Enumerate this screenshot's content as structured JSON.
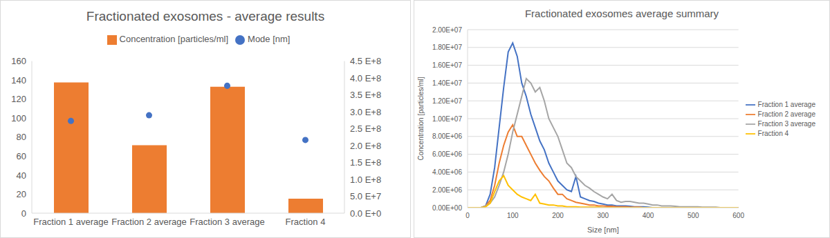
{
  "chart_data": [
    {
      "type": "bar",
      "title": "Fractionated exosomes - average results",
      "categories": [
        "Fraction 1 average",
        "Fraction 2 average",
        "Fraction 3 average",
        "Fraction 4"
      ],
      "series": [
        {
          "name": "Concentration [particles/ml]",
          "type": "bar",
          "color": "#ed7d31",
          "axis": "y2",
          "values": [
            387000000.0,
            201000000.0,
            374000000.0,
            43000000.0
          ]
        },
        {
          "name": "Mode [nm]",
          "type": "scatter",
          "color": "#4472c4",
          "marker": "circle",
          "values": [
            97,
            103,
            134,
            77
          ]
        }
      ],
      "ylim": [
        0,
        160
      ],
      "yticks": [
        0,
        20,
        40,
        60,
        80,
        100,
        120,
        140,
        160
      ],
      "y2lim": [
        0,
        450000000.0
      ],
      "y2ticks": [
        {
          "value": 0,
          "label": "0.0 E+0"
        },
        {
          "value": 50000000.0,
          "label": "5.0 E+7"
        },
        {
          "value": 100000000.0,
          "label": "1.0 E+8"
        },
        {
          "value": 150000000.0,
          "label": "1.5 E+8"
        },
        {
          "value": 200000000.0,
          "label": "2.0 E+8"
        },
        {
          "value": 250000000.0,
          "label": "2.5 E+8"
        },
        {
          "value": 300000000.0,
          "label": "3.0 E+8"
        },
        {
          "value": 350000000.0,
          "label": "3.5 E+8"
        },
        {
          "value": 400000000.0,
          "label": "4.0 E+8"
        },
        {
          "value": 450000000.0,
          "label": "4.5 E+8"
        }
      ],
      "legend": "top",
      "grid": false
    },
    {
      "type": "line",
      "title": "Fractionated exosomes average summary",
      "xlabel": "Size [nm]",
      "ylabel": "Concentration [particles/ml]",
      "x": [
        0,
        10,
        20,
        30,
        40,
        50,
        60,
        70,
        80,
        90,
        100,
        110,
        120,
        130,
        140,
        150,
        160,
        170,
        180,
        190,
        200,
        210,
        220,
        230,
        240,
        250,
        260,
        270,
        280,
        290,
        300,
        310,
        320,
        330,
        340,
        350,
        360,
        370,
        380,
        390,
        400,
        410,
        420,
        430,
        440,
        450,
        460,
        470,
        480,
        490,
        500,
        510,
        520,
        530,
        540,
        550,
        560,
        570,
        580,
        590,
        600
      ],
      "series": [
        {
          "name": "Fraction 1 average",
          "color": "#4472c4",
          "values": [
            0,
            0,
            0,
            0,
            200000.0,
            1500000.0,
            4500000.0,
            9000000.0,
            13500000.0,
            17500000.0,
            18500000.0,
            17000000.0,
            14000000.0,
            12500000.0,
            10500000.0,
            9000000.0,
            7500000.0,
            6500000.0,
            5000000.0,
            4000000.0,
            3000000.0,
            2500000.0,
            2000000.0,
            1800000.0,
            3500000.0,
            1200000.0,
            1000000.0,
            800000.0,
            700000.0,
            500000.0,
            400000.0,
            300000.0,
            300000.0,
            200000.0,
            200000.0,
            200000.0,
            150000.0,
            100000.0,
            100000.0,
            100000.0,
            50000.0,
            0,
            0,
            0,
            0,
            0,
            0,
            0,
            0,
            0,
            0,
            0,
            0,
            0,
            0,
            0,
            0,
            0,
            0,
            0,
            0
          ]
        },
        {
          "name": "Fraction 2 average",
          "color": "#ed7d31",
          "values": [
            0,
            0,
            0,
            0,
            200000.0,
            800000.0,
            2500000.0,
            5000000.0,
            7000000.0,
            8500000.0,
            9300000.0,
            8000000.0,
            8000000.0,
            7000000.0,
            6000000.0,
            5000000.0,
            4200000.0,
            3500000.0,
            3000000.0,
            2200000.0,
            1500000.0,
            1500000.0,
            1000000.0,
            800000.0,
            600000.0,
            500000.0,
            400000.0,
            300000.0,
            300000.0,
            200000.0,
            200000.0,
            150000.0,
            150000.0,
            100000.0,
            100000.0,
            100000.0,
            50000.0,
            50000.0,
            50000.0,
            0,
            0,
            0,
            0,
            0,
            0,
            0,
            0,
            0,
            0,
            0,
            0,
            0,
            0,
            0,
            0,
            0,
            0,
            0,
            0,
            0,
            0
          ]
        },
        {
          "name": "Fraction 3 average",
          "color": "#a5a5a5",
          "values": [
            0,
            0,
            0,
            0,
            200000.0,
            500000.0,
            1200000.0,
            2500000.0,
            4000000.0,
            6000000.0,
            8500000.0,
            10500000.0,
            12500000.0,
            14500000.0,
            14000000.0,
            13000000.0,
            13500000.0,
            12000000.0,
            10000000.0,
            9000000.0,
            8000000.0,
            6500000.0,
            5000000.0,
            4500000.0,
            3500000.0,
            3000000.0,
            2500000.0,
            2200000.0,
            1800000.0,
            1500000.0,
            1200000.0,
            1000000.0,
            1500000.0,
            800000.0,
            600000.0,
            700000.0,
            700000.0,
            600000.0,
            500000.0,
            500000.0,
            400000.0,
            300000.0,
            300000.0,
            200000.0,
            200000.0,
            200000.0,
            150000.0,
            100000.0,
            100000.0,
            100000.0,
            100000.0,
            100000.0,
            50000.0,
            50000.0,
            50000.0,
            50000.0,
            0,
            0,
            0,
            0,
            0
          ]
        },
        {
          "name": "Fraction 4",
          "color": "#ffc000",
          "values": [
            0,
            0,
            0,
            0,
            100000.0,
            500000.0,
            1800000.0,
            3000000.0,
            3600000.0,
            2500000.0,
            2000000.0,
            1500000.0,
            1200000.0,
            1000000.0,
            800000.0,
            1500000.0,
            500000.0,
            400000.0,
            300000.0,
            300000.0,
            200000.0,
            200000.0,
            100000.0,
            100000.0,
            100000.0,
            50000.0,
            50000.0,
            50000.0,
            50000.0,
            50000.0,
            0,
            0,
            0,
            0,
            0,
            0,
            0,
            0,
            0,
            0,
            0,
            0,
            0,
            0,
            0,
            0,
            0,
            0,
            0,
            0,
            0,
            0,
            0,
            0,
            0,
            0,
            0,
            0,
            0,
            0,
            0
          ]
        }
      ],
      "xlim": [
        0,
        600
      ],
      "xticks": [
        0,
        100,
        200,
        300,
        400,
        500,
        600
      ],
      "ylim": [
        0,
        20000000.0
      ],
      "yticks": [
        {
          "value": 0,
          "label": "0.00E+00"
        },
        {
          "value": 2000000.0,
          "label": "2.00E+06"
        },
        {
          "value": 4000000.0,
          "label": "4.00E+06"
        },
        {
          "value": 6000000.0,
          "label": "6.00E+06"
        },
        {
          "value": 8000000.0,
          "label": "8.00E+06"
        },
        {
          "value": 10000000.0,
          "label": "1.00E+07"
        },
        {
          "value": 12000000.0,
          "label": "1.20E+07"
        },
        {
          "value": 14000000.0,
          "label": "1.40E+07"
        },
        {
          "value": 16000000.0,
          "label": "1.60E+07"
        },
        {
          "value": 18000000.0,
          "label": "1.80E+07"
        },
        {
          "value": 20000000.0,
          "label": "2.00E+07"
        }
      ],
      "legend": "right",
      "grid": true
    }
  ]
}
